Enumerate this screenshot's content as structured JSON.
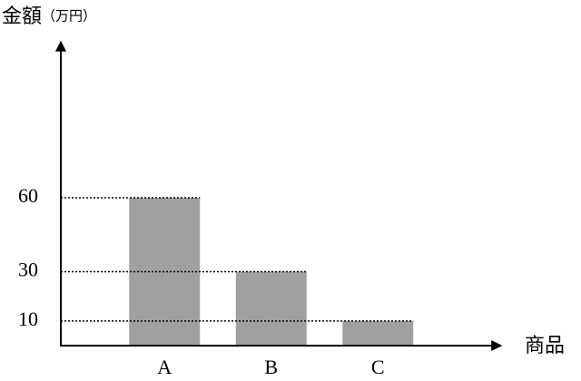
{
  "chart_data": {
    "type": "bar",
    "y_label": "金額",
    "y_unit": "（万円）",
    "x_label": "商品",
    "categories": [
      "A",
      "B",
      "C"
    ],
    "values": [
      60,
      30,
      10
    ],
    "color": "#a0a0a0",
    "ylim": [
      0,
      120
    ],
    "yticks": [
      10,
      30,
      60
    ],
    "guide_lines": true
  }
}
